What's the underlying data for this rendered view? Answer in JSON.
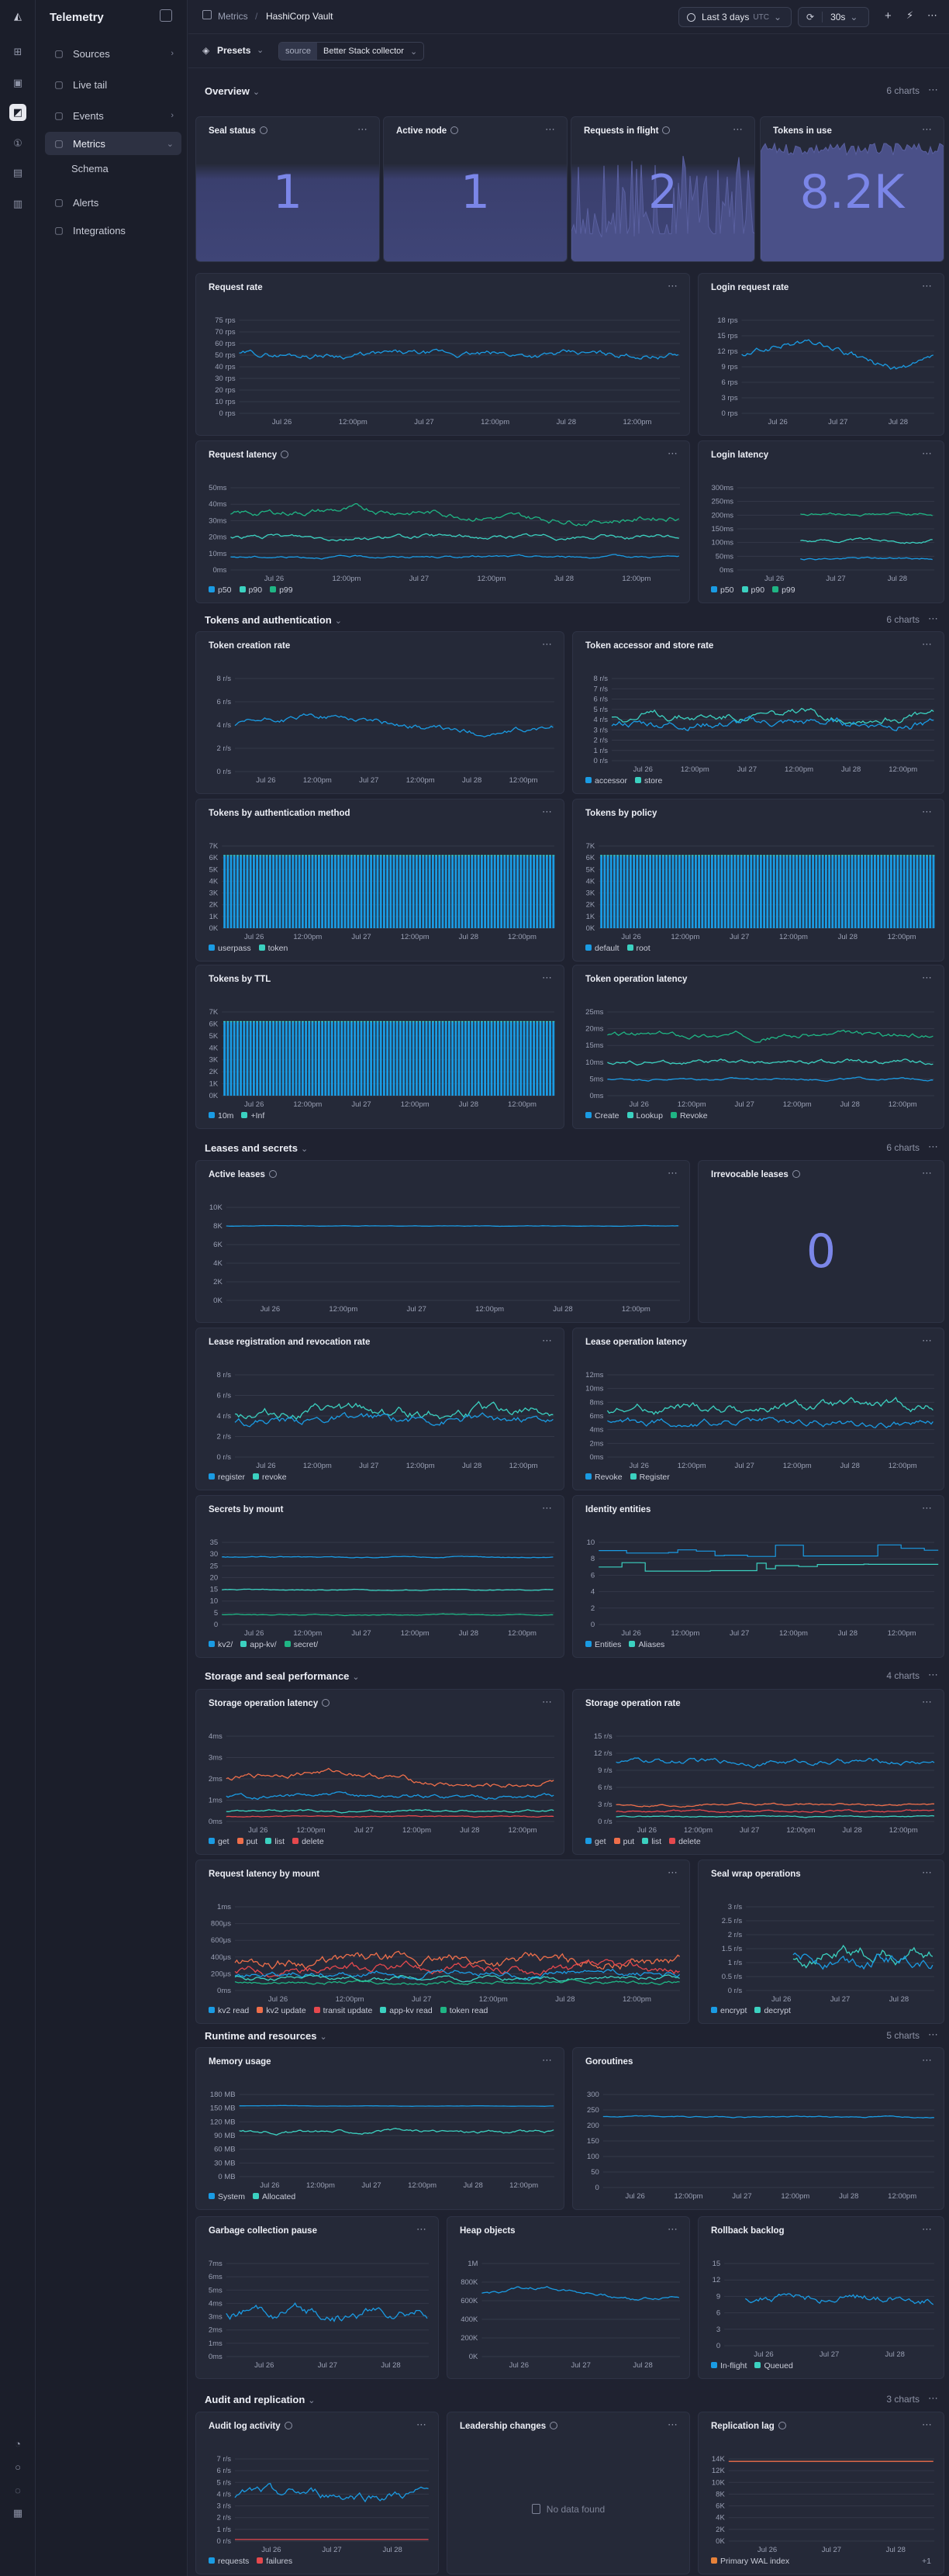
{
  "app": {
    "title": "Telemetry"
  },
  "nav": {
    "items": [
      {
        "label": "Sources",
        "icon": "database-icon",
        "chevron": true
      },
      {
        "label": "Live tail",
        "icon": "document-icon",
        "chevron": false
      },
      {
        "label": "Events",
        "icon": "events-icon",
        "chevron": true
      },
      {
        "label": "Metrics",
        "icon": "chart-icon",
        "chevron": true,
        "active": true
      },
      {
        "label": "Alerts",
        "icon": "alert-icon",
        "chevron": false
      },
      {
        "label": "Integrations",
        "icon": "grid-icon",
        "chevron": false
      }
    ],
    "subitems": [
      "Schema"
    ]
  },
  "breadcrumb": {
    "parent": "Metrics",
    "current": "HashiCorp Vault"
  },
  "toolbar": {
    "range": "Last 3 days",
    "tz": "UTC",
    "refresh": "30s"
  },
  "presets": {
    "label": "Presets",
    "source_key": "source",
    "source_value": "Better Stack collector"
  },
  "common": {
    "xticks": [
      "Jul 26",
      "12:00pm",
      "Jul 27",
      "12:00pm",
      "Jul 28",
      "12:00pm"
    ],
    "xticks_short": [
      "Jul 26",
      "Jul 27",
      "Jul 28"
    ],
    "no_data": "No data found"
  },
  "sections": [
    {
      "title": "Overview",
      "count": "6 charts"
    },
    {
      "title": "Tokens and authentication",
      "count": "6 charts"
    },
    {
      "title": "Leases and secrets",
      "count": "6 charts"
    },
    {
      "title": "Storage and seal performance",
      "count": "4 charts"
    },
    {
      "title": "Runtime and resources",
      "count": "5 charts"
    },
    {
      "title": "Audit and replication",
      "count": "3 charts"
    }
  ],
  "charts": [
    {
      "title": "Seal status",
      "info": true,
      "type": "stat",
      "value": "1"
    },
    {
      "title": "Active node",
      "info": true,
      "type": "stat",
      "value": "1"
    },
    {
      "title": "Requests in flight",
      "info": true,
      "type": "stat",
      "value": "2"
    },
    {
      "title": "Tokens in use",
      "info": false,
      "type": "stat",
      "value": "8.2K"
    },
    {
      "title": "Request rate",
      "info": false,
      "type": "line",
      "yticks": [
        "75 rps",
        "70 rps",
        "60 rps",
        "50 rps",
        "40 rps",
        "30 rps",
        "20 rps",
        "10 rps",
        "0 rps"
      ]
    },
    {
      "title": "Login request rate",
      "info": false,
      "type": "line",
      "yticks": [
        "18 rps",
        "15 rps",
        "12 rps",
        "9 rps",
        "6 rps",
        "3 rps",
        "0 rps"
      ]
    },
    {
      "title": "Request latency",
      "info": true,
      "type": "line",
      "yticks": [
        "50ms",
        "40ms",
        "30ms",
        "20ms",
        "10ms",
        "0ms"
      ],
      "legend": [
        "p50",
        "p90",
        "p99"
      ]
    },
    {
      "title": "Login latency",
      "info": false,
      "type": "line",
      "yticks": [
        "300ms",
        "250ms",
        "200ms",
        "150ms",
        "100ms",
        "50ms",
        "0ms"
      ],
      "legend": [
        "p50",
        "p90",
        "p99"
      ]
    },
    {
      "title": "Token creation rate",
      "info": false,
      "type": "line",
      "yticks": [
        "8 r/s",
        "6 r/s",
        "4 r/s",
        "2 r/s",
        "0 r/s"
      ]
    },
    {
      "title": "Token accessor and store rate",
      "info": false,
      "type": "line",
      "yticks": [
        "8 r/s",
        "7 r/s",
        "6 r/s",
        "5 r/s",
        "4 r/s",
        "3 r/s",
        "2 r/s",
        "1 r/s",
        "0 r/s"
      ],
      "legend": [
        "accessor",
        "store"
      ]
    },
    {
      "title": "Tokens by authentication method",
      "info": false,
      "type": "bar",
      "yticks": [
        "7K",
        "6K",
        "5K",
        "4K",
        "3K",
        "2K",
        "1K",
        "0K"
      ],
      "legend": [
        "userpass",
        "token"
      ]
    },
    {
      "title": "Tokens by policy",
      "info": false,
      "type": "bar",
      "yticks": [
        "7K",
        "6K",
        "5K",
        "4K",
        "3K",
        "2K",
        "1K",
        "0K"
      ],
      "legend": [
        "default",
        "root"
      ]
    },
    {
      "title": "Tokens by TTL",
      "info": false,
      "type": "bar",
      "yticks": [
        "7K",
        "6K",
        "5K",
        "4K",
        "3K",
        "2K",
        "1K",
        "0K"
      ],
      "legend": [
        "10m",
        "+Inf"
      ]
    },
    {
      "title": "Token operation latency",
      "info": false,
      "type": "line",
      "yticks": [
        "25ms",
        "20ms",
        "15ms",
        "10ms",
        "5ms",
        "0ms"
      ],
      "legend": [
        "Create",
        "Lookup",
        "Revoke"
      ]
    },
    {
      "title": "Active leases",
      "info": true,
      "type": "line",
      "yticks": [
        "10K",
        "8K",
        "6K",
        "4K",
        "2K",
        "0K"
      ]
    },
    {
      "title": "Irrevocable leases",
      "info": true,
      "type": "stat",
      "value": "0"
    },
    {
      "title": "Lease registration and revocation rate",
      "info": false,
      "type": "line",
      "yticks": [
        "8 r/s",
        "6 r/s",
        "4 r/s",
        "2 r/s",
        "0 r/s"
      ],
      "legend": [
        "register",
        "revoke"
      ]
    },
    {
      "title": "Lease operation latency",
      "info": false,
      "type": "line",
      "yticks": [
        "12ms",
        "10ms",
        "8ms",
        "6ms",
        "4ms",
        "2ms",
        "0ms"
      ],
      "legend": [
        "Revoke",
        "Register"
      ]
    },
    {
      "title": "Secrets by mount",
      "info": false,
      "type": "line",
      "yticks": [
        "35",
        "30",
        "25",
        "20",
        "15",
        "10",
        "5",
        "0"
      ],
      "legend": [
        "kv2/",
        "app-kv/",
        "secret/"
      ]
    },
    {
      "title": "Identity entities",
      "info": false,
      "type": "line",
      "yticks": [
        "10",
        "8",
        "6",
        "4",
        "2",
        "0"
      ],
      "legend": [
        "Entities",
        "Aliases"
      ]
    },
    {
      "title": "Storage operation latency",
      "info": true,
      "type": "line",
      "yticks": [
        "4ms",
        "3ms",
        "2ms",
        "1ms",
        "0ms"
      ],
      "legend": [
        "get",
        "put",
        "list",
        "delete"
      ]
    },
    {
      "title": "Storage operation rate",
      "info": false,
      "type": "line",
      "yticks": [
        "15 r/s",
        "12 r/s",
        "9 r/s",
        "6 r/s",
        "3 r/s",
        "0 r/s"
      ],
      "legend": [
        "get",
        "put",
        "list",
        "delete"
      ]
    },
    {
      "title": "Request latency by mount",
      "info": false,
      "type": "line",
      "yticks": [
        "1ms",
        "800μs",
        "600μs",
        "400μs",
        "200μs",
        "0ms"
      ],
      "legend": [
        "kv2 read",
        "kv2 update",
        "transit update",
        "app-kv read",
        "token read"
      ]
    },
    {
      "title": "Seal wrap operations",
      "info": false,
      "type": "line",
      "yticks": [
        "3 r/s",
        "2.5 r/s",
        "2 r/s",
        "1.5 r/s",
        "1 r/s",
        "0.5 r/s",
        "0 r/s"
      ],
      "legend": [
        "encrypt",
        "decrypt"
      ]
    },
    {
      "title": "Memory usage",
      "info": false,
      "type": "line",
      "yticks": [
        "180 MB",
        "150 MB",
        "120 MB",
        "90 MB",
        "60 MB",
        "30 MB",
        "0 MB"
      ],
      "legend": [
        "System",
        "Allocated"
      ]
    },
    {
      "title": "Goroutines",
      "info": false,
      "type": "line",
      "yticks": [
        "300",
        "250",
        "200",
        "150",
        "100",
        "50",
        "0"
      ]
    },
    {
      "title": "Garbage collection pause",
      "info": false,
      "type": "line",
      "yticks": [
        "7ms",
        "6ms",
        "5ms",
        "4ms",
        "3ms",
        "2ms",
        "1ms",
        "0ms"
      ]
    },
    {
      "title": "Heap objects",
      "info": false,
      "type": "line",
      "yticks": [
        "1M",
        "800K",
        "600K",
        "400K",
        "200K",
        "0K"
      ]
    },
    {
      "title": "Rollback backlog",
      "info": false,
      "type": "line",
      "yticks": [
        "15",
        "12",
        "9",
        "6",
        "3",
        "0"
      ],
      "legend": [
        "In-flight",
        "Queued"
      ]
    },
    {
      "title": "Audit log activity",
      "info": true,
      "type": "line",
      "yticks": [
        "7 r/s",
        "6 r/s",
        "5 r/s",
        "4 r/s",
        "3 r/s",
        "2 r/s",
        "1 r/s",
        "0 r/s"
      ],
      "legend": [
        "requests",
        "failures"
      ]
    },
    {
      "title": "Leadership changes",
      "info": true,
      "type": "empty"
    },
    {
      "title": "Replication lag",
      "info": true,
      "type": "line",
      "yticks": [
        "14K",
        "12K",
        "10K",
        "8K",
        "6K",
        "4K",
        "2K",
        "0K"
      ],
      "legend": [
        "Primary WAL index"
      ],
      "legend_more": "+1"
    }
  ],
  "colors": {
    "blue": "#1a9be3",
    "teal": "#3bd1c0",
    "green": "#1fb584",
    "orange": "#ee6e4a",
    "red": "#e5484d",
    "purple": "#7b86e8",
    "accent_orange": "#e8823a"
  }
}
